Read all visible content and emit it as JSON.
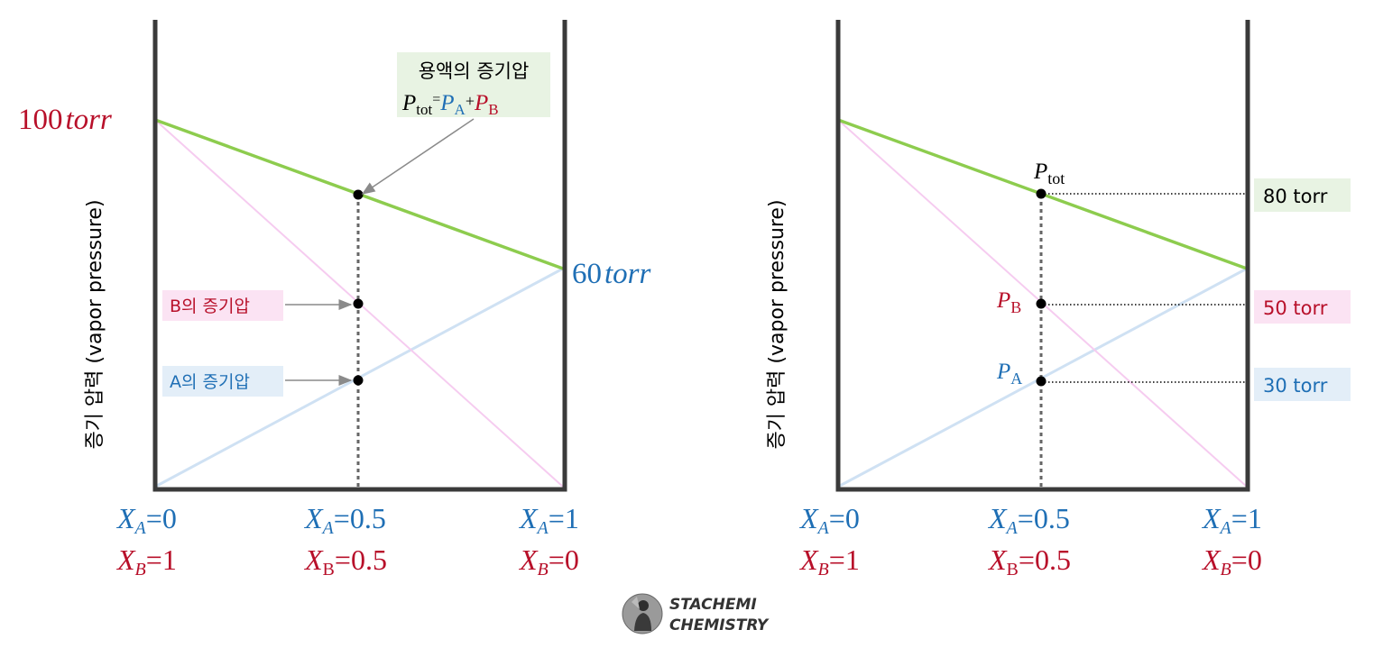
{
  "colors": {
    "frame": "#3a3a3a",
    "tot_line": "#8dcc4e",
    "a_line": "#cfe1f3",
    "b_line": "#f6ccf0",
    "blue": "#1f6fb5",
    "red": "#b8102a",
    "dotted": "#666666",
    "arrow": "#8a8a8a",
    "green_box": "#e8f3e3",
    "pink_box": "#fbe3f3",
    "blue_box": "#e3eef8"
  },
  "left_panel": {
    "y_axis_label": "증기 압력 (vapor pressure)",
    "pure_b_pressure": "100",
    "pure_a_pressure": "60",
    "pressure_unit": "torr",
    "callout_total": {
      "line1": "용액의 증기압",
      "p": "P",
      "tot": "tot",
      "eq": "=",
      "pa_p": "P",
      "pa_sub": "A",
      "plus": "+",
      "pb_p": "P",
      "pb_sub": "B"
    },
    "callout_b": "B의 증기압",
    "callout_a": "A의 증기압",
    "x_ticks": [
      {
        "xa": "X",
        "xa_sub": "A",
        "xa_val": "=0",
        "xb": "X",
        "xb_sub": "B",
        "xb_val": "=1"
      },
      {
        "xa": "X",
        "xa_sub": "A",
        "xa_val": "=0.5",
        "xb": "X",
        "xb_sub": "B",
        "xb_val": "=0.5"
      },
      {
        "xa": "X",
        "xa_sub": "A",
        "xa_val": "=1",
        "xb": "X",
        "xb_sub": "B",
        "xb_val": "=0"
      }
    ]
  },
  "right_panel": {
    "y_axis_label": "증기 압력 (vapor pressure)",
    "point_tot": {
      "p": "P",
      "sub": "tot"
    },
    "point_b": {
      "p": "P",
      "sub": "B"
    },
    "point_a": {
      "p": "P",
      "sub": "A"
    },
    "value_tot": "80 torr",
    "value_b": "50 torr",
    "value_a": "30 torr",
    "x_ticks": [
      {
        "xa": "X",
        "xa_sub": "A",
        "xa_val": "=0",
        "xb": "X",
        "xb_sub": "B",
        "xb_val": "=1"
      },
      {
        "xa": "X",
        "xa_sub": "A",
        "xa_val": "=0.5",
        "xb": "X",
        "xb_sub": "B",
        "xb_val": "=0.5"
      },
      {
        "xa": "X",
        "xa_sub": "A",
        "xa_val": "=1",
        "xb": "X",
        "xb_sub": "B",
        "xb_val": "=0"
      }
    ]
  },
  "chart_data": {
    "type": "line",
    "x": [
      0,
      0.5,
      1
    ],
    "series": [
      {
        "name": "P_tot",
        "values": [
          100,
          80,
          60
        ]
      },
      {
        "name": "P_B",
        "values": [
          100,
          50,
          0
        ]
      },
      {
        "name": "P_A",
        "values": [
          0,
          30,
          60
        ]
      }
    ],
    "ylim": [
      0,
      130
    ]
  },
  "logo": {
    "line1": "STACHEMI",
    "line2": "CHEMISTRY"
  }
}
